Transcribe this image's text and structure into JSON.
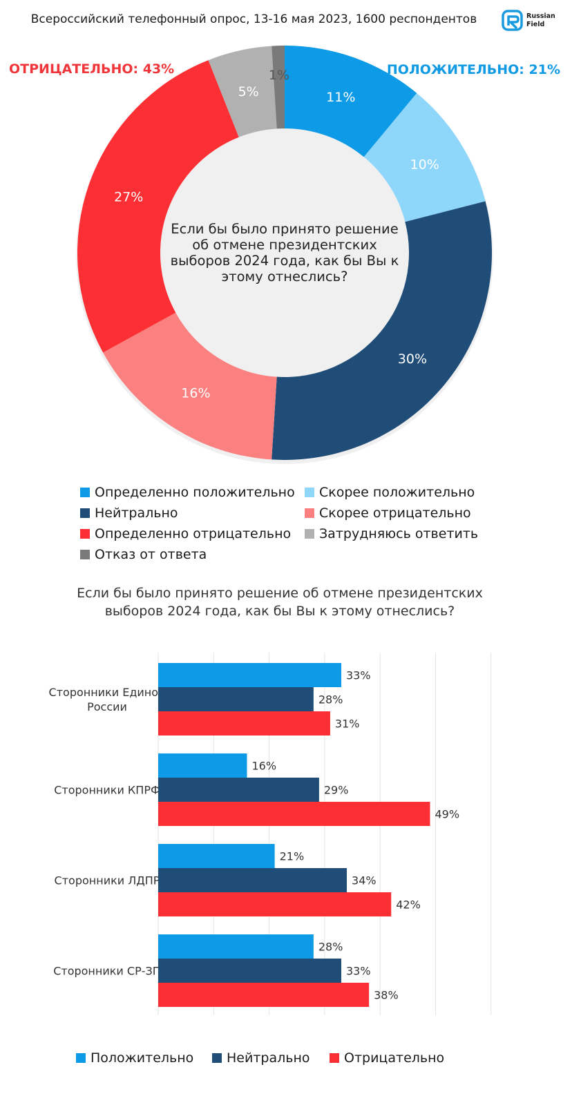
{
  "header": {
    "title": "Всероссийский телефонный опрос, 13-16 мая 2023, 1600 респондентов",
    "logo_line1": "Russian",
    "logo_line2": "Field",
    "logo_icon": "russian-field-logo"
  },
  "summary": {
    "negative": "ОТРИЦАТЕЛЬНО: 43%",
    "positive": "ПОЛОЖИТЕЛЬНО: 21%",
    "negative_color": "#f0363a",
    "positive_color": "#109ae3"
  },
  "chart_data": [
    {
      "type": "pie",
      "donut": true,
      "center_text": "Если бы было принято решение об отмене президентских выборов 2024 года, как бы Вы к этому отнеслись?",
      "slices": [
        {
          "name": "Определенно положительно",
          "value": 11,
          "label": "11%",
          "color": "#0d9ae6"
        },
        {
          "name": "Скорее положительно",
          "value": 10,
          "label": "10%",
          "color": "#8fd6fb"
        },
        {
          "name": "Нейтрально",
          "value": 30,
          "label": "30%",
          "color": "#204d78"
        },
        {
          "name": "Скорее отрицательно",
          "value": 16,
          "label": "16%",
          "color": "#fb8180"
        },
        {
          "name": "Определенно отрицательно",
          "value": 27,
          "label": "27%",
          "color": "#fc3034"
        },
        {
          "name": "Затрудняюсь ответить",
          "value": 5,
          "label": "5%",
          "color": "#b1b1b1"
        },
        {
          "name": "Отказ от ответа",
          "value": 1,
          "label": "1%",
          "color": "#7a7a7a"
        }
      ],
      "legend": [
        "Определенно положительно",
        "Скорее положительно",
        "Нейтрально",
        "Скорее отрицательно",
        "Определенно отрицательно",
        "Затрудняюсь ответить",
        "Отказ от ответа"
      ],
      "legend_position": "bottom"
    },
    {
      "type": "bar",
      "orientation": "horizontal",
      "title": "Если бы было принято решение об отмене президентских выборов 2024 года, как бы Вы к этому отнеслись?",
      "categories": [
        "Сторонники Единой России",
        "Сторонники КПРФ",
        "Сторонники ЛДПР",
        "Сторонники СР-ЗП"
      ],
      "series": [
        {
          "name": "Положительно",
          "values": [
            33,
            16,
            21,
            28
          ],
          "labels": [
            "33%",
            "16%",
            "21%",
            "28%"
          ],
          "color": "#0d9ae6"
        },
        {
          "name": "Нейтрально",
          "values": [
            28,
            29,
            34,
            33
          ],
          "labels": [
            "28%",
            "29%",
            "34%",
            "33%"
          ],
          "color": "#204d78"
        },
        {
          "name": "Отрицательно",
          "values": [
            31,
            49,
            42,
            38
          ],
          "labels": [
            "31%",
            "49%",
            "42%",
            "38%"
          ],
          "color": "#fc3034"
        }
      ],
      "xlim": [
        0,
        60
      ],
      "grid": true,
      "legend_position": "bottom"
    }
  ]
}
